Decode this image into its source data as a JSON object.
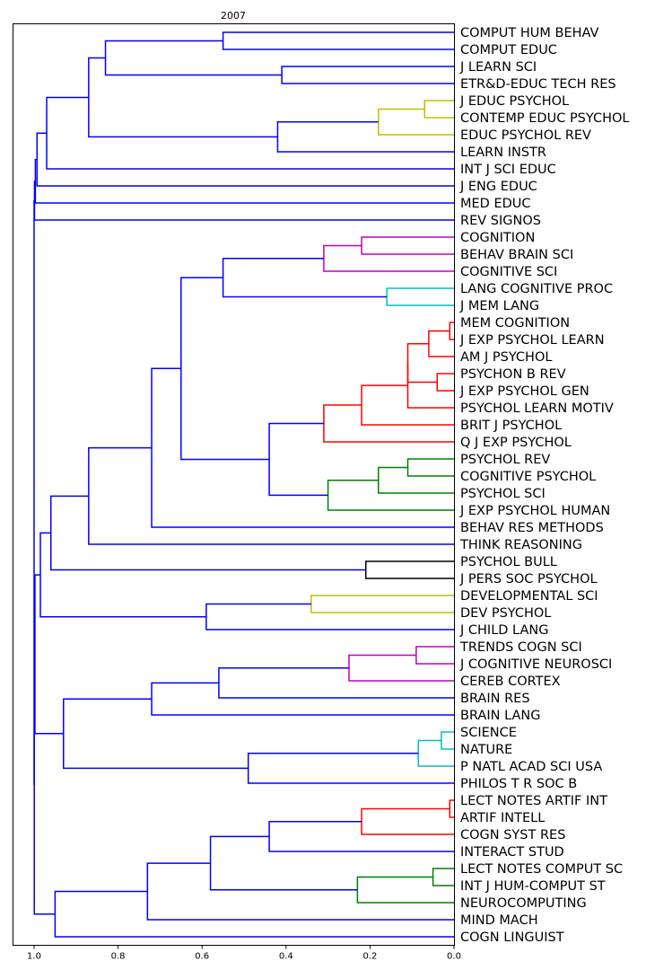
{
  "chart_data": {
    "type": "dendrogram",
    "title": "2007",
    "orientation": "leaves-right",
    "xlim": [
      1.0,
      0.0
    ],
    "xticks": [
      "1.0",
      "0.8",
      "0.6",
      "0.4",
      "0.2",
      "0.0"
    ],
    "xtick_values": [
      1.0,
      0.8,
      0.6,
      0.4,
      0.2,
      0.0
    ],
    "leaves": [
      "COMPUT HUM BEHAV",
      "COMPUT EDUC",
      "J LEARN SCI",
      "ETR&D-EDUC TECH RES",
      "J EDUC PSYCHOL",
      "CONTEMP EDUC PSYCHOL",
      "EDUC PSYCHOL REV",
      "LEARN INSTR",
      "INT J SCI EDUC",
      "J ENG EDUC",
      "MED EDUC",
      "REV SIGNOS",
      "COGNITION",
      "BEHAV BRAIN SCI",
      "COGNITIVE SCI",
      "LANG COGNITIVE PROC",
      "J MEM LANG",
      "MEM COGNITION",
      "J EXP PSYCHOL LEARN",
      "AM J PSYCHOL",
      "PSYCHON B REV",
      "J EXP PSYCHOL GEN",
      "PSYCHOL LEARN MOTIV",
      "BRIT J PSYCHOL",
      "Q J EXP PSYCHOL",
      "PSYCHOL REV",
      "COGNITIVE PSYCHOL",
      "PSYCHOL SCI",
      "J EXP PSYCHOL HUMAN",
      "BEHAV RES METHODS",
      "THINK REASONING",
      "PSYCHOL BULL",
      "J PERS SOC PSYCHOL",
      "DEVELOPMENTAL SCI",
      "DEV PSYCHOL",
      "J CHILD LANG",
      "TRENDS COGN SCI",
      "J COGNITIVE NEUROSCI",
      "CEREB CORTEX",
      "BRAIN RES",
      "BRAIN LANG",
      "SCIENCE",
      "NATURE",
      "P NATL ACAD SCI USA",
      "PHILOS T R SOC B",
      "LECT NOTES ARTIF INT",
      "ARTIF INTELL",
      "COGN SYST RES",
      "INTERACT STUD",
      "LECT NOTES COMPUT SC",
      "INT J HUM-COMPUT ST",
      "NEUROCOMPUTING",
      "MIND MACH",
      "COGN LINGUIST"
    ],
    "colors": {
      "blue": "#0000ff",
      "yellow": "#bfbf00",
      "magenta": "#bf00bf",
      "cyan": "#00bfbf",
      "red": "#ff0000",
      "green": "#008000",
      "black": "#000000"
    },
    "merges": [
      {
        "a": 0,
        "b": 1,
        "h": 0.55,
        "color": "blue"
      },
      {
        "a": 2,
        "b": 3,
        "h": 0.41,
        "color": "blue"
      },
      {
        "a": 54,
        "b": 55,
        "h": 0.83,
        "color": "blue"
      },
      {
        "a": 4,
        "b": 5,
        "h": 0.07,
        "color": "yellow"
      },
      {
        "a": 57,
        "b": 6,
        "h": 0.18,
        "color": "yellow"
      },
      {
        "a": 58,
        "b": 7,
        "h": 0.42,
        "color": "blue"
      },
      {
        "a": 56,
        "b": 59,
        "h": 0.87,
        "color": "blue"
      },
      {
        "a": 60,
        "b": 8,
        "h": 0.97,
        "color": "blue"
      },
      {
        "a": 61,
        "b": 9,
        "h": 0.993,
        "color": "blue"
      },
      {
        "a": 62,
        "b": 10,
        "h": 0.997,
        "color": "blue"
      },
      {
        "a": 63,
        "b": 11,
        "h": 0.999,
        "color": "blue"
      },
      {
        "a": 12,
        "b": 13,
        "h": 0.22,
        "color": "magenta"
      },
      {
        "a": 65,
        "b": 14,
        "h": 0.31,
        "color": "magenta"
      },
      {
        "a": 15,
        "b": 16,
        "h": 0.16,
        "color": "cyan"
      },
      {
        "a": 66,
        "b": 67,
        "h": 0.55,
        "color": "blue"
      },
      {
        "a": 17,
        "b": 18,
        "h": 0.01,
        "color": "red"
      },
      {
        "a": 69,
        "b": 19,
        "h": 0.06,
        "color": "red"
      },
      {
        "a": 20,
        "b": 21,
        "h": 0.04,
        "color": "red"
      },
      {
        "a": 70,
        "b": 71,
        "h": 0.11,
        "color": "red"
      },
      {
        "a": 72,
        "b": 22,
        "h": 0.11,
        "color": "red"
      },
      {
        "a": 73,
        "b": 23,
        "h": 0.22,
        "color": "red"
      },
      {
        "a": 74,
        "b": 24,
        "h": 0.31,
        "color": "red"
      },
      {
        "a": 25,
        "b": 26,
        "h": 0.11,
        "color": "green"
      },
      {
        "a": 76,
        "b": 27,
        "h": 0.18,
        "color": "green"
      },
      {
        "a": 77,
        "b": 28,
        "h": 0.3,
        "color": "green"
      },
      {
        "a": 75,
        "b": 78,
        "h": 0.44,
        "color": "blue"
      },
      {
        "a": 68,
        "b": 79,
        "h": 0.65,
        "color": "blue"
      },
      {
        "a": 80,
        "b": 29,
        "h": 0.72,
        "color": "blue"
      },
      {
        "a": 81,
        "b": 30,
        "h": 0.87,
        "color": "blue"
      },
      {
        "a": 31,
        "b": 32,
        "h": 0.21,
        "color": "black"
      },
      {
        "a": 82,
        "b": 83,
        "h": 0.96,
        "color": "blue"
      },
      {
        "a": 33,
        "b": 34,
        "h": 0.34,
        "color": "yellow"
      },
      {
        "a": 85,
        "b": 35,
        "h": 0.59,
        "color": "blue"
      },
      {
        "a": 84,
        "b": 86,
        "h": 0.985,
        "color": "blue"
      },
      {
        "a": 36,
        "b": 37,
        "h": 0.09,
        "color": "magenta"
      },
      {
        "a": 88,
        "b": 38,
        "h": 0.25,
        "color": "magenta"
      },
      {
        "a": 89,
        "b": 39,
        "h": 0.56,
        "color": "blue"
      },
      {
        "a": 90,
        "b": 40,
        "h": 0.72,
        "color": "blue"
      },
      {
        "a": 41,
        "b": 42,
        "h": 0.03,
        "color": "cyan"
      },
      {
        "a": 92,
        "b": 43,
        "h": 0.085,
        "color": "cyan"
      },
      {
        "a": 93,
        "b": 44,
        "h": 0.49,
        "color": "blue"
      },
      {
        "a": 91,
        "b": 94,
        "h": 0.93,
        "color": "blue"
      },
      {
        "a": 87,
        "b": 95,
        "h": 0.998,
        "color": "blue"
      },
      {
        "a": 45,
        "b": 46,
        "h": 0.01,
        "color": "red"
      },
      {
        "a": 97,
        "b": 47,
        "h": 0.22,
        "color": "red"
      },
      {
        "a": 98,
        "b": 48,
        "h": 0.44,
        "color": "blue"
      },
      {
        "a": 49,
        "b": 50,
        "h": 0.05,
        "color": "green"
      },
      {
        "a": 100,
        "b": 51,
        "h": 0.23,
        "color": "green"
      },
      {
        "a": 99,
        "b": 101,
        "h": 0.58,
        "color": "blue"
      },
      {
        "a": 102,
        "b": 52,
        "h": 0.73,
        "color": "blue"
      },
      {
        "a": 103,
        "b": 53,
        "h": 0.95,
        "color": "blue"
      },
      {
        "a": 96,
        "b": 104,
        "h": 0.9995,
        "color": "blue"
      },
      {
        "a": 64,
        "b": 105,
        "h": 1.0,
        "color": "blue"
      }
    ]
  }
}
